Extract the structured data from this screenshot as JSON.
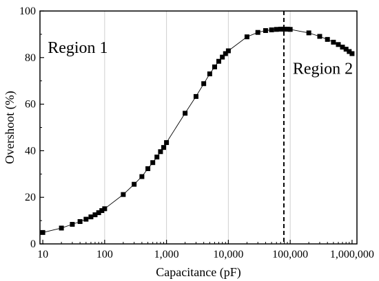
{
  "chart_data": {
    "type": "scatter",
    "xlabel": "Capacitance (pF)",
    "ylabel": "Overshoot (%)",
    "xscale": "log",
    "xlim": [
      9,
      1200000
    ],
    "ylim": [
      0,
      100
    ],
    "xticks": [
      {
        "value": 10,
        "label": "10"
      },
      {
        "value": 100,
        "label": "100"
      },
      {
        "value": 1000,
        "label": "1,000"
      },
      {
        "value": 10000,
        "label": "10,000"
      },
      {
        "value": 100000,
        "label": "100,000"
      },
      {
        "value": 1000000,
        "label": "1,000,000"
      }
    ],
    "yticks": [
      {
        "value": 0,
        "label": "0"
      },
      {
        "value": 20,
        "label": "20"
      },
      {
        "value": 40,
        "label": "40"
      },
      {
        "value": 60,
        "label": "60"
      },
      {
        "value": 80,
        "label": "80"
      },
      {
        "value": 100,
        "label": "100"
      }
    ],
    "vertical_gridlines": [
      100,
      1000,
      10000,
      100000
    ],
    "marker": "square",
    "connecting_line": true,
    "divider": {
      "x": 79000,
      "style": "dashed"
    },
    "annotations": [
      {
        "text": "Region 1",
        "x": 12,
        "y": 82
      },
      {
        "text": "Region 2",
        "x": 110000,
        "y": 73
      }
    ],
    "series": [
      {
        "x": [
          10,
          20,
          30,
          40,
          50,
          60,
          70,
          80,
          90,
          100,
          200,
          300,
          400,
          500,
          600,
          700,
          800,
          900,
          1000,
          2000,
          3000,
          4000,
          5000,
          6000,
          7000,
          8000,
          9000,
          10000,
          20000,
          30000,
          40000,
          50000,
          60000,
          70000,
          80000,
          90000,
          100000,
          200000,
          300000,
          400000,
          500000,
          600000,
          700000,
          800000,
          900000,
          1000000
        ],
        "y": [
          4.9,
          6.8,
          8.4,
          9.6,
          10.6,
          11.6,
          12.5,
          13.4,
          14.3,
          15.1,
          21.2,
          25.6,
          28.9,
          32.3,
          34.9,
          37.3,
          39.6,
          41.4,
          43.5,
          56.1,
          63.3,
          68.8,
          73.0,
          76.0,
          78.4,
          80.2,
          81.7,
          82.9,
          88.9,
          90.8,
          91.6,
          91.9,
          92.1,
          92.2,
          92.2,
          92.2,
          92.1,
          90.6,
          89.1,
          87.8,
          86.6,
          85.6,
          84.5,
          83.6,
          82.6,
          81.7
        ]
      }
    ]
  }
}
